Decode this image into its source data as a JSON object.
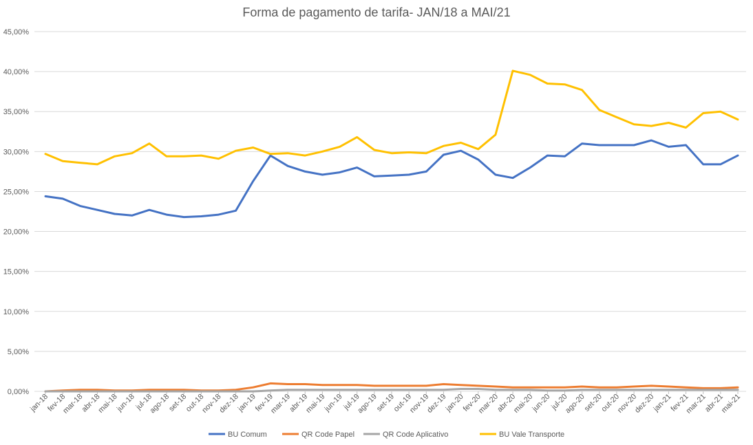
{
  "chart_data": {
    "type": "line",
    "title": "Forma de pagamento de tarifa- JAN/18 a MAI/21",
    "xlabel": "",
    "ylabel": "",
    "ylim": [
      0,
      45
    ],
    "y_ticks": [
      "0,00%",
      "5,00%",
      "10,00%",
      "15,00%",
      "20,00%",
      "25,00%",
      "30,00%",
      "35,00%",
      "40,00%",
      "45,00%"
    ],
    "y_tick_values": [
      0,
      5,
      10,
      15,
      20,
      25,
      30,
      35,
      40,
      45
    ],
    "grid": true,
    "legend_position": "bottom",
    "categories": [
      "jan-18",
      "fev-18",
      "mar-18",
      "abr-18",
      "mai-18",
      "jun-18",
      "jul-18",
      "ago-18",
      "set-18",
      "out-18",
      "nov-18",
      "dez-18",
      "jan-19",
      "fev-19",
      "mar-19",
      "abr-19",
      "mai-19",
      "jun-19",
      "jul-19",
      "ago-19",
      "set-19",
      "out-19",
      "nov-19",
      "dez-19",
      "jan-20",
      "fev-20",
      "mar-20",
      "abr-20",
      "mai-20",
      "jun-20",
      "jul-20",
      "ago-20",
      "set-20",
      "out-20",
      "nov-20",
      "dez-20",
      "jan-21",
      "fev-21",
      "mar-21",
      "abr-21",
      "mai-21"
    ],
    "series": [
      {
        "name": "BU Comum",
        "color": "#4472c4",
        "values": [
          24.4,
          24.1,
          23.2,
          22.7,
          22.2,
          22.0,
          22.7,
          22.1,
          21.8,
          21.9,
          22.1,
          22.6,
          26.3,
          29.5,
          28.2,
          27.5,
          27.1,
          27.4,
          28.0,
          26.9,
          27.0,
          27.1,
          27.5,
          29.6,
          30.1,
          29.0,
          27.1,
          26.7,
          28.0,
          29.5,
          29.4,
          31.0,
          30.8,
          30.8,
          30.8,
          31.4,
          30.6,
          30.8,
          28.4,
          28.4,
          29.5
        ]
      },
      {
        "name": "QR Code Papel",
        "color": "#ed7d31",
        "values": [
          0.0,
          0.1,
          0.2,
          0.2,
          0.1,
          0.1,
          0.2,
          0.2,
          0.2,
          0.1,
          0.1,
          0.2,
          0.5,
          1.0,
          0.9,
          0.9,
          0.8,
          0.8,
          0.8,
          0.7,
          0.7,
          0.7,
          0.7,
          0.9,
          0.8,
          0.7,
          0.6,
          0.5,
          0.5,
          0.5,
          0.5,
          0.6,
          0.5,
          0.5,
          0.6,
          0.7,
          0.6,
          0.5,
          0.4,
          0.4,
          0.5
        ]
      },
      {
        "name": "QR Code Aplicativo",
        "color": "#a5a5a5",
        "values": [
          0.0,
          0.0,
          0.0,
          0.0,
          0.0,
          0.0,
          0.0,
          0.0,
          0.0,
          0.0,
          0.0,
          0.0,
          0.0,
          0.1,
          0.2,
          0.2,
          0.2,
          0.2,
          0.2,
          0.2,
          0.2,
          0.2,
          0.2,
          0.2,
          0.3,
          0.3,
          0.2,
          0.2,
          0.2,
          0.1,
          0.1,
          0.2,
          0.2,
          0.2,
          0.2,
          0.2,
          0.2,
          0.2,
          0.2,
          0.2,
          0.2
        ]
      },
      {
        "name": "BU Vale Transporte",
        "color": "#ffc000",
        "values": [
          29.7,
          28.8,
          28.6,
          28.4,
          29.4,
          29.8,
          31.0,
          29.4,
          29.4,
          29.5,
          29.1,
          30.1,
          30.5,
          29.7,
          29.8,
          29.5,
          30.0,
          30.6,
          31.8,
          30.2,
          29.8,
          29.9,
          29.8,
          30.7,
          31.1,
          30.3,
          32.1,
          40.1,
          39.6,
          38.5,
          38.4,
          37.7,
          35.2,
          34.3,
          33.4,
          33.2,
          33.6,
          33.0,
          34.8,
          35.0,
          34.0
        ]
      }
    ]
  }
}
